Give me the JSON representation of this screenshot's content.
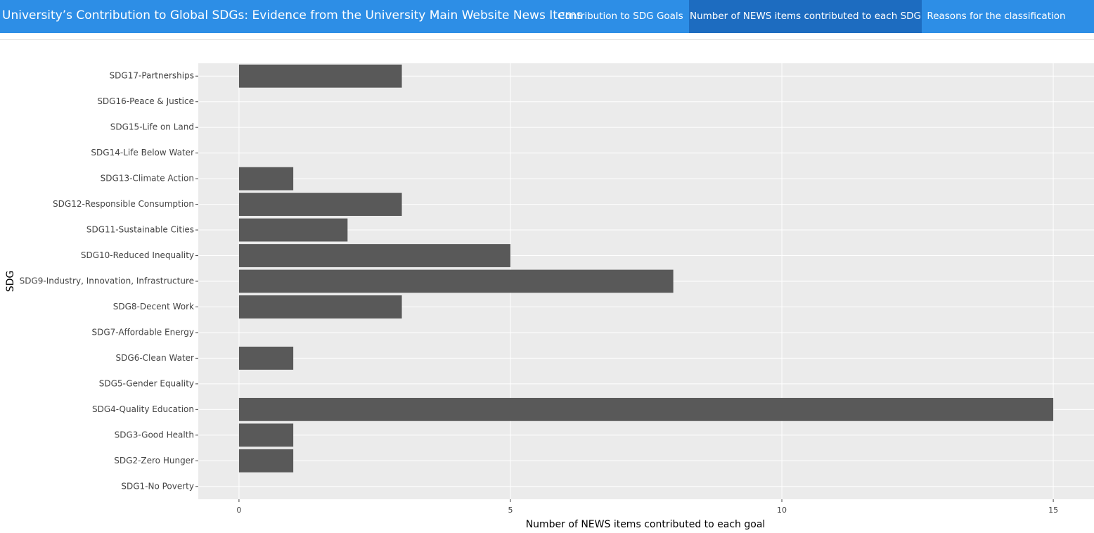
{
  "nav": {
    "title": "University’s Contribution to Global SDGs: Evidence from the University Main Website News Items",
    "tabs": [
      "Contribution to SDG Goals",
      "Number of NEWS items contributed to each SDG",
      "Reasons for the classification"
    ]
  },
  "chart_data": {
    "type": "bar",
    "orientation": "horizontal",
    "x_label": "Number of NEWS items contributed to each goal",
    "y_label": "SDG",
    "categories": [
      "SDG1-No Poverty",
      "SDG2-Zero Hunger",
      "SDG3-Good Health",
      "SDG4-Quality Education",
      "SDG5-Gender Equality",
      "SDG6-Clean Water",
      "SDG7-Affordable Energy",
      "SDG8-Decent Work",
      "SDG9-Industry, Innovation, Infrastructure",
      "SDG10-Reduced Inequality",
      "SDG11-Sustainable Cities",
      "SDG12-Responsible Consumption",
      "SDG13-Climate Action",
      "SDG14-Life Below Water",
      "SDG15-Life on Land",
      "SDG16-Peace & Justice",
      "SDG17-Partnerships"
    ],
    "values": [
      0,
      1,
      1,
      15,
      0,
      1,
      0,
      3,
      8,
      5,
      2,
      3,
      1,
      0,
      0,
      0,
      3
    ],
    "color": "#595959",
    "xlim": [
      -0.75,
      15.75
    ],
    "xticks": [
      0,
      5,
      10,
      15
    ],
    "grid": true
  }
}
